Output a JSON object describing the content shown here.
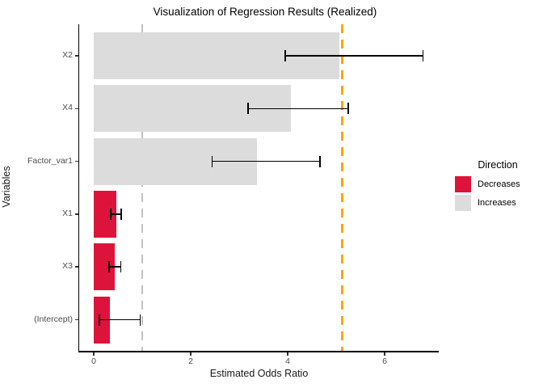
{
  "figure": {
    "title": "Visualization of Regression Results (Realized)",
    "x_axis_label": "Estimated Odds Ratio",
    "y_axis_label": "Variables"
  },
  "legend": {
    "title": "Direction",
    "entries": [
      {
        "label": "Decreases",
        "color": "#DC143C"
      },
      {
        "label": "Increases",
        "color": "#DCDCDC"
      }
    ]
  },
  "chart_data": {
    "type": "bar",
    "orientation": "horizontal",
    "title": "Visualization of Regression Results (Realized)",
    "xlabel": "Estimated Odds Ratio",
    "ylabel": "Variables",
    "x_ticks": [
      0,
      2,
      4,
      6
    ],
    "xlim": [
      -0.3,
      7.1
    ],
    "grid": false,
    "legend_position": "right",
    "categories_top_to_bottom": [
      "X2",
      "X4",
      "Factor_var1",
      "X1",
      "X3",
      "(Intercept)"
    ],
    "series": [
      {
        "name": "odds_ratio",
        "values": [
          5.06,
          4.06,
          3.36,
          0.46,
          0.44,
          0.33
        ]
      },
      {
        "name": "ci_lower",
        "values": [
          3.95,
          3.18,
          2.44,
          0.35,
          0.32,
          0.12
        ]
      },
      {
        "name": "ci_upper",
        "values": [
          6.79,
          5.25,
          4.67,
          0.57,
          0.56,
          0.96
        ]
      }
    ],
    "direction": [
      "Increases",
      "Increases",
      "Increases",
      "Decreases",
      "Decreases",
      "Decreases"
    ],
    "bar_colors": {
      "Decreases": "#DC143C",
      "Increases": "#DCDCDC"
    },
    "error_bar_color": "#000000",
    "axis_text_color": "#4D4D4D",
    "reference_lines": [
      {
        "x": 1.0,
        "color": "#C2C2C2",
        "style": "dashed",
        "name": "null-effect-reference-line"
      },
      {
        "x": 5.12,
        "color": "#FFA500",
        "style": "dashed",
        "name": "orange-reference-line"
      }
    ]
  }
}
